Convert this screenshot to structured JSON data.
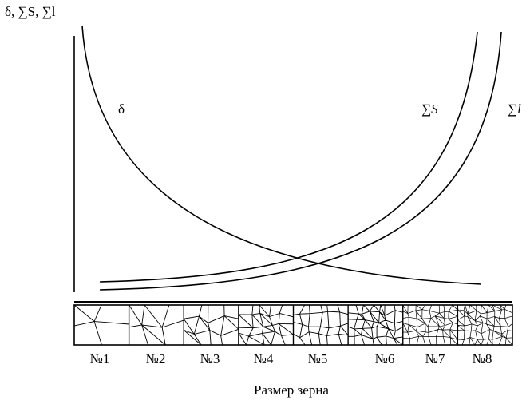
{
  "axis_label": "δ, ∑S, ∑l",
  "curves": [
    {
      "label": "δ"
    },
    {
      "label": "∑S"
    },
    {
      "label": "∑l"
    }
  ],
  "grain_sizes": [
    "№1",
    "№2",
    "№3",
    "№4",
    "№5",
    "№6",
    "№7",
    "№8"
  ],
  "x_label": "Размер зерна"
}
